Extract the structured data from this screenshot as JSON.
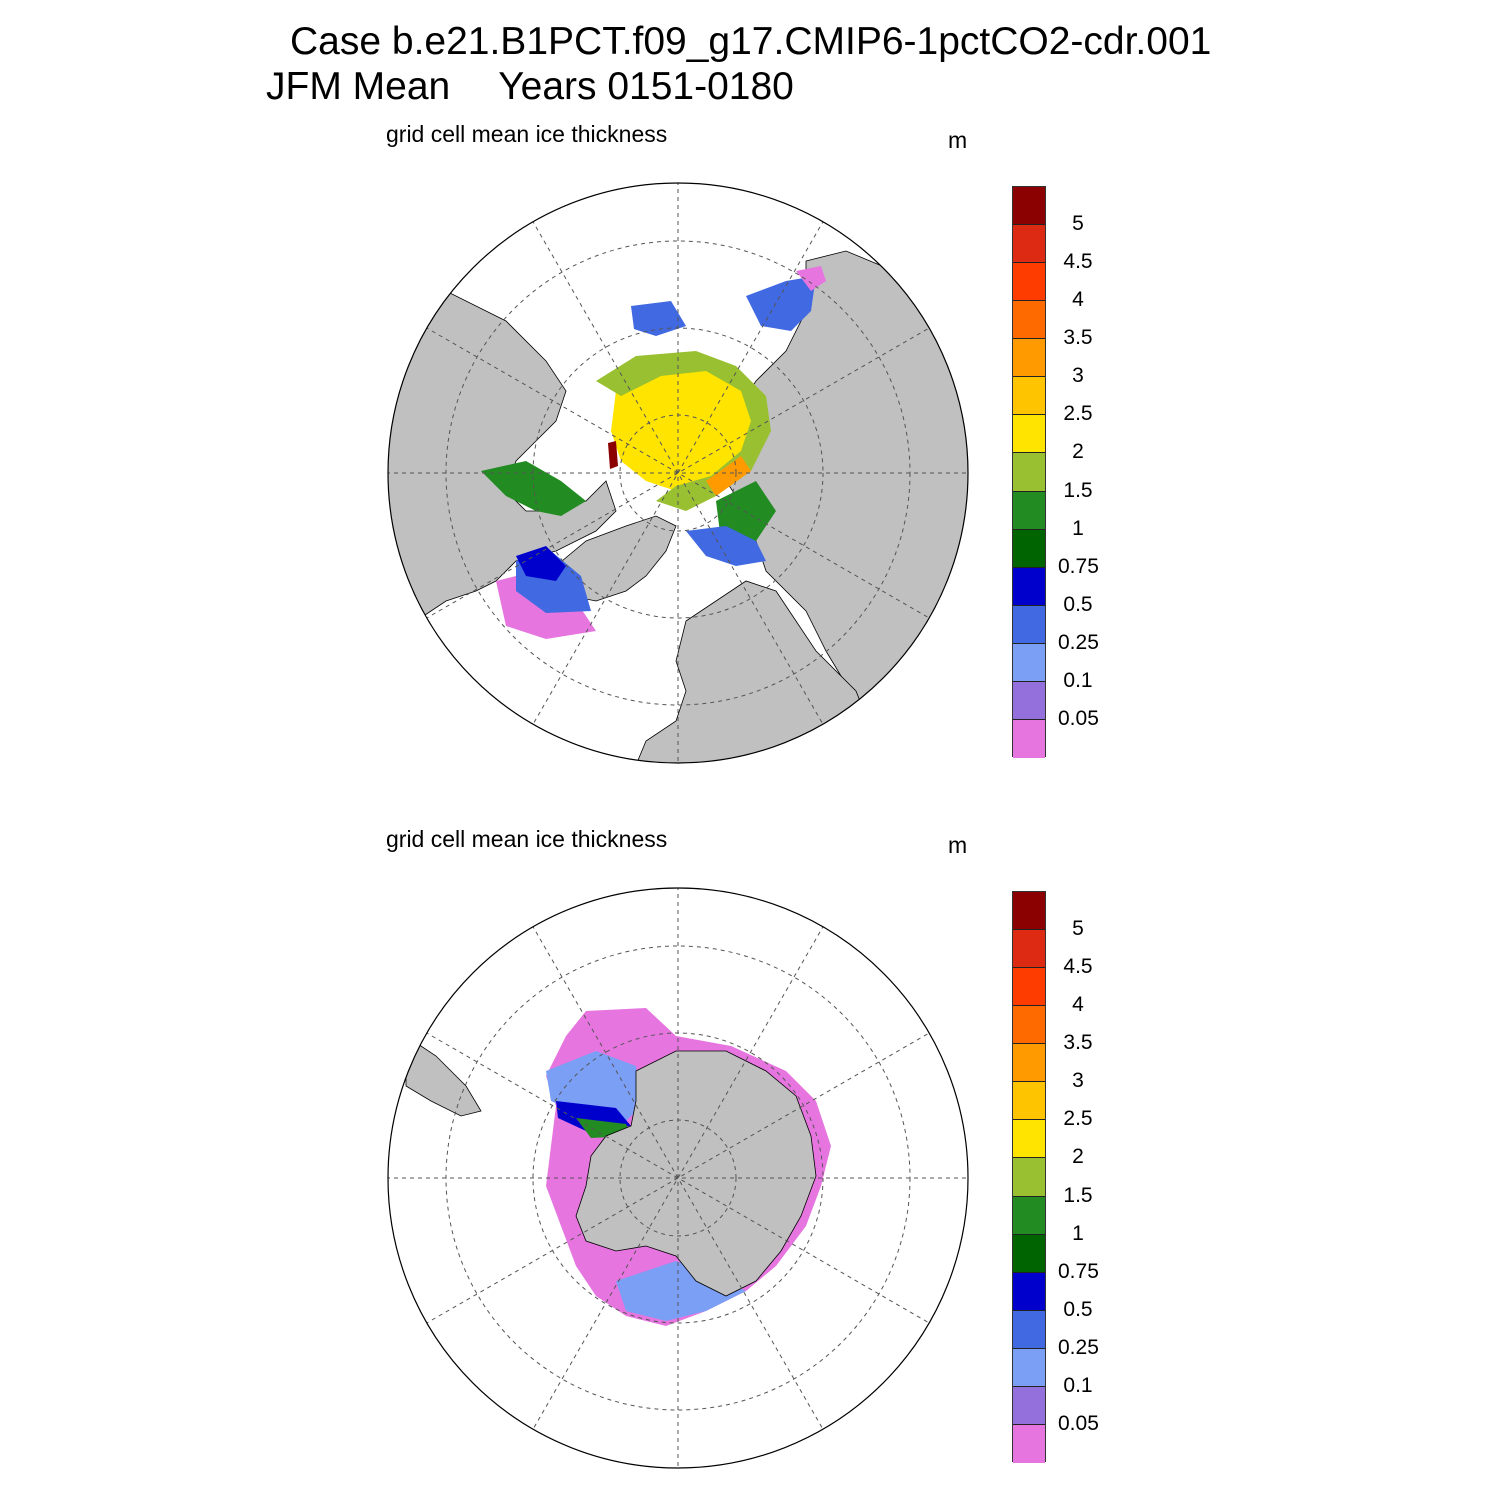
{
  "title": {
    "case": "Case b.e21.B1PCT.f09_g17.CMIP6-1pctCO2-cdr.001",
    "season": "JFM Mean",
    "years": "Years 0151-0180"
  },
  "panels": [
    {
      "id": "north",
      "hemisphere": "Arctic",
      "variable_label": "grid cell mean ice thickness",
      "units": "m"
    },
    {
      "id": "south",
      "hemisphere": "Antarctic",
      "variable_label": "grid cell mean ice thickness",
      "units": "m"
    }
  ],
  "colorbar": {
    "ticks": [
      "5",
      "4.5",
      "4",
      "3.5",
      "3",
      "2.5",
      "2",
      "1.5",
      "1",
      "0.75",
      "0.5",
      "0.25",
      "0.1",
      "0.05"
    ],
    "colors_top_to_bottom": [
      "#8b0000",
      "#dd2a12",
      "#ff3c00",
      "#ff6a00",
      "#ff9a00",
      "#ffc400",
      "#ffe400",
      "#99c031",
      "#228b22",
      "#006400",
      "#0000cd",
      "#4169e1",
      "#7b9ff5",
      "#9370db",
      "#e675e0"
    ]
  },
  "colors": {
    "land": "#c0c0c0",
    "ocean": "#ffffff",
    "grid": "#555555"
  }
}
